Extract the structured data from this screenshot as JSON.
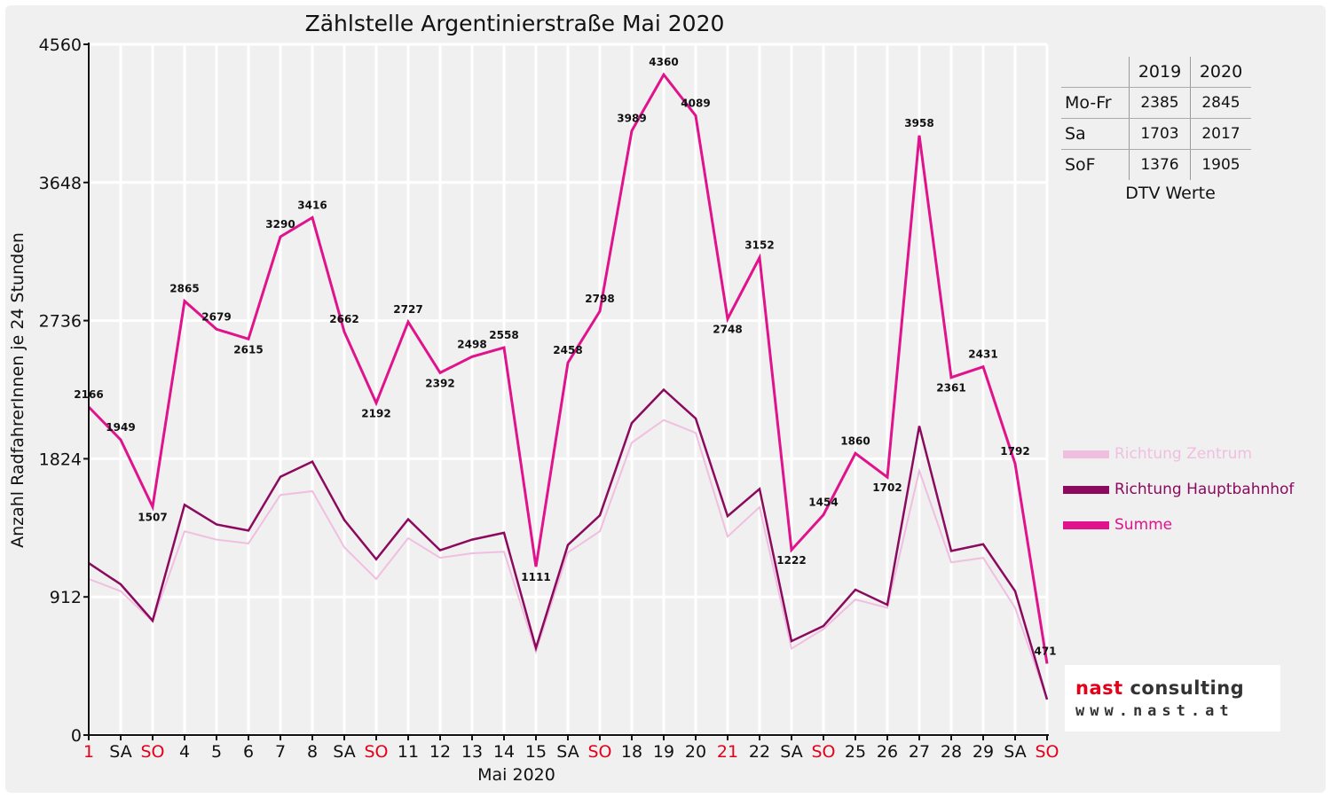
{
  "chart_data": {
    "type": "line",
    "title": "Zählstelle Argentinierstraße Mai 2020",
    "xlabel": "Mai 2020",
    "ylabel": "Anzahl RadfahrerInnen je 24 Stunden",
    "ylim": [
      0,
      4560
    ],
    "yticks": [
      0,
      912,
      1824,
      2736,
      3648,
      4560
    ],
    "grid": true,
    "legend_position": "right",
    "categories": [
      "1",
      "SA",
      "SO",
      "4",
      "5",
      "6",
      "7",
      "8",
      "SA",
      "SO",
      "11",
      "12",
      "13",
      "14",
      "15",
      "SA",
      "SO",
      "18",
      "19",
      "20",
      "21",
      "22",
      "SA",
      "SO",
      "25",
      "26",
      "27",
      "28",
      "29",
      "SA",
      "SO"
    ],
    "red_categories": [
      0,
      2,
      9,
      16,
      20,
      23,
      30
    ],
    "series": [
      {
        "name": "Richtung Zentrum",
        "color": "#f0bfe0",
        "values": [
          1030,
          950,
          750,
          1345,
          1290,
          1265,
          1585,
          1610,
          1240,
          1030,
          1300,
          1170,
          1200,
          1210,
          550,
          1205,
          1345,
          1930,
          2080,
          1995,
          1310,
          1505,
          570,
          700,
          895,
          840,
          1745,
          1140,
          1170,
          840,
          235
        ]
      },
      {
        "name": "Richtung Hauptbahnhof",
        "color": "#8b0a5e",
        "values": [
          1135,
          995,
          755,
          1520,
          1390,
          1350,
          1705,
          1805,
          1420,
          1160,
          1425,
          1220,
          1290,
          1335,
          575,
          1255,
          1450,
          2060,
          2280,
          2090,
          1445,
          1625,
          620,
          720,
          960,
          860,
          2040,
          1215,
          1260,
          950,
          235
        ]
      },
      {
        "name": "Summe",
        "color": "#e0138c",
        "values": [
          2166,
          1949,
          1507,
          2865,
          2679,
          2615,
          3290,
          3416,
          2662,
          2192,
          2727,
          2392,
          2498,
          2558,
          1111,
          2458,
          2798,
          3989,
          4360,
          4089,
          2748,
          3152,
          1222,
          1454,
          1860,
          1702,
          3958,
          2361,
          2431,
          1792,
          471
        ]
      }
    ],
    "data_labels": [
      "2166",
      "1949",
      "1507",
      "2865",
      "2679",
      "2615",
      "3290",
      "3416",
      "2662",
      "2192",
      "2727",
      "2392",
      "2498",
      "2558",
      "1111",
      "2458",
      "2798",
      "3989",
      "4360",
      "4089",
      "2748",
      "3152",
      "1222",
      "1454",
      "1860",
      "1702",
      "3958",
      "2361",
      "2431",
      "1792",
      "471"
    ]
  },
  "dtv_table": {
    "headers": [
      "2019",
      "2020"
    ],
    "rows": [
      {
        "label": "Mo-Fr",
        "v2019": "2385",
        "v2020": "2845"
      },
      {
        "label": "Sa",
        "v2019": "1703",
        "v2020": "2017"
      },
      {
        "label": "SoF",
        "v2019": "1376",
        "v2020": "1905"
      }
    ],
    "caption": "DTV Werte"
  },
  "logo": {
    "brand_nast": "nast",
    "brand_rest": "consulting",
    "url": "www.nast.at"
  },
  "colors": {
    "weekday_label": "#111111",
    "holiday_label": "#e2001a",
    "gridline": "#dddddd",
    "background": "#f0f0f0"
  }
}
